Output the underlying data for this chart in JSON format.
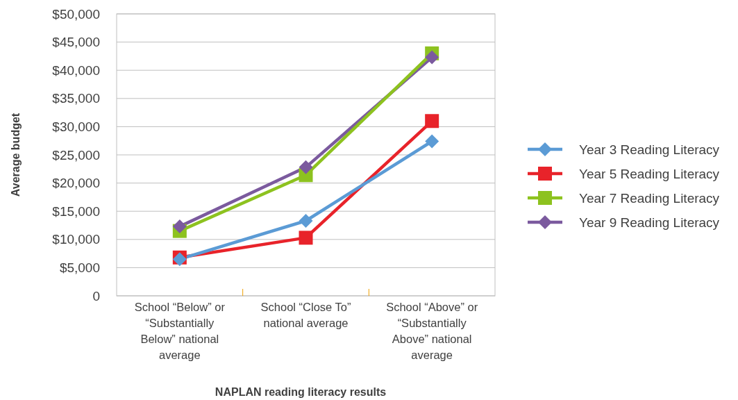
{
  "chart_data": {
    "type": "line",
    "xlabel": "NAPLAN reading literacy results",
    "ylabel": "Average budget",
    "categories": [
      "School “Below” or “Substantially Below” national average",
      "School “Close To” national average",
      "School “Above” or “Substantially Above” national average"
    ],
    "series": [
      {
        "name": "Year 3 Reading Literacy",
        "color": "#5b9bd5",
        "marker": "diamond",
        "values": [
          6500,
          13300,
          27400
        ]
      },
      {
        "name": "Year 5 Reading Literacy",
        "color": "#e8232a",
        "marker": "square",
        "values": [
          6800,
          10300,
          31000
        ]
      },
      {
        "name": "Year 7 Reading Literacy",
        "color": "#8dc21f",
        "marker": "square",
        "values": [
          11500,
          21400,
          43000
        ]
      },
      {
        "name": "Year 9 Reading Literacy",
        "color": "#7b5a9e",
        "marker": "diamond",
        "values": [
          12300,
          22800,
          42300
        ]
      }
    ],
    "ylim": [
      0,
      50000
    ],
    "yticks": [
      0,
      {
        "value": 5000,
        "label": "$5,000"
      },
      {
        "value": 10000,
        "label": "$10,000"
      },
      {
        "value": 15000,
        "label": "$15,000"
      },
      {
        "value": 20000,
        "label": "$20,000"
      },
      {
        "value": 25000,
        "label": "$25,000"
      },
      {
        "value": 30000,
        "label": "$30,000"
      },
      {
        "value": 35000,
        "label": "$35,000"
      },
      {
        "value": 40000,
        "label": "$40,000"
      },
      {
        "value": 45000,
        "label": "$45,000"
      },
      {
        "value": 50000,
        "label": "$50,000"
      }
    ],
    "grid": "y",
    "legend": "right",
    "line_style": "solid"
  }
}
